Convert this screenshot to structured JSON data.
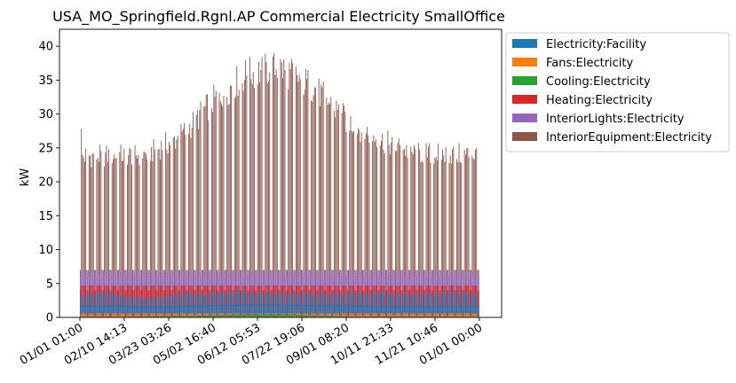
{
  "chart_data": {
    "type": "area",
    "title": "USA_MO_Springfield.Rgnl.AP Commercial Electricity SmallOffice",
    "xlabel": "",
    "ylabel": "kW",
    "ylim": [
      0,
      42.5
    ],
    "yticks": [
      0,
      5,
      10,
      15,
      20,
      25,
      30,
      35,
      40
    ],
    "xtick_labels": [
      "01/01 01:00",
      "02/10 14:13",
      "03/23 03:26",
      "05/02 16:40",
      "06/12 05:53",
      "07/22 19:06",
      "09/01 08:20",
      "10/11 21:33",
      "11/21 10:46",
      "01/01 00:00"
    ],
    "x_range_days": [
      0,
      365
    ],
    "series": [
      {
        "name": "Electricity:Facility",
        "color": "#1f77b4",
        "weekday_peak_kw": [
          3.5,
          3.8,
          3.0,
          3.6,
          3.8,
          4.0,
          3.8,
          3.6,
          3.8,
          3.8,
          3.6,
          3.8
        ],
        "weekday_base_kw": [
          1.8,
          1.9,
          1.7,
          1.8,
          1.9,
          2.0,
          2.0,
          1.9,
          1.9,
          1.8,
          1.8,
          1.8
        ],
        "weekend_kw": 1.6
      },
      {
        "name": "Fans:Electricity",
        "color": "#ff7f0e",
        "weekday_peak_kw": 0.6,
        "weekend_kw": 0.2
      },
      {
        "name": "Cooling:Electricity",
        "color": "#2ca02c",
        "weekday_peak_kw": [
          0,
          0,
          0.1,
          0.2,
          0.3,
          0.5,
          0.5,
          0.3,
          0.1,
          0,
          0,
          0
        ],
        "weekend_kw": 0
      },
      {
        "name": "Heating:Electricity",
        "color": "#d62728",
        "weekday_peak_kw": 4.7,
        "weekend_kw": 4.0
      },
      {
        "name": "InteriorLights:Electricity",
        "color": "#9467bd",
        "weekday_peak_kw": 6.9,
        "weekend_kw": 6.0
      },
      {
        "name": "InteriorEquipment:Electricity",
        "color": "#8c564b",
        "weekday_peak_kw": [
          24.5,
          24.6,
          24.8,
          27.5,
          33.0,
          37.0,
          38.0,
          35.0,
          30.0,
          27.0,
          25.0,
          24.8
        ],
        "weekend_kw": 7.0,
        "initial_spike_kw": 27.8,
        "annual_max_kw": 40.3
      }
    ]
  }
}
